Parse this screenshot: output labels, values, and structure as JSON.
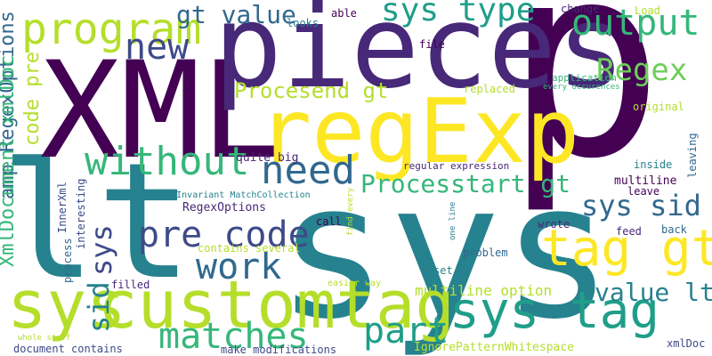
{
  "colors": {
    "dark_purple": "#440154",
    "purple": "#482878",
    "indigo": "#3e4a89",
    "blue": "#31688e",
    "teal": "#26828e",
    "teal_green": "#1f9e89",
    "green": "#35b779",
    "light_green": "#6ece58",
    "lime": "#b5de2b",
    "yellow": "#fde725"
  },
  "words": [
    {
      "text": "p",
      "color": "#440154"
    },
    {
      "text": "sys",
      "color": "#26828e"
    },
    {
      "text": "lt",
      "color": "#26828e"
    },
    {
      "text": "XML",
      "color": "#440154"
    },
    {
      "text": "pieces",
      "color": "#482878"
    },
    {
      "text": "regExp",
      "color": "#fde725"
    },
    {
      "text": "customtag",
      "color": "#b5de2b"
    },
    {
      "text": "sys",
      "color": "#b5de2b"
    },
    {
      "text": "sys tag",
      "color": "#1f9e89"
    },
    {
      "text": "tag gt",
      "color": "#fde725"
    },
    {
      "text": "program",
      "color": "#b5de2b"
    },
    {
      "text": "output",
      "color": "#35b779"
    },
    {
      "text": "Regex",
      "color": "#6ece58"
    },
    {
      "text": "new",
      "color": "#3e4a89"
    },
    {
      "text": "gt value",
      "color": "#31688e"
    },
    {
      "text": "sys type",
      "color": "#1f9e89"
    },
    {
      "text": "without",
      "color": "#35b779"
    },
    {
      "text": "need",
      "color": "#31688e"
    },
    {
      "text": "pre code",
      "color": "#3e4a89"
    },
    {
      "text": "work",
      "color": "#31688e"
    },
    {
      "text": "matches",
      "color": "#35b779"
    },
    {
      "text": "part",
      "color": "#1f9e89"
    },
    {
      "text": "sys sid",
      "color": "#31688e"
    },
    {
      "text": "value lt",
      "color": "#26828e"
    },
    {
      "text": "Processtart gt",
      "color": "#35b779"
    },
    {
      "text": "Procesend gt",
      "color": "#b5de2b"
    },
    {
      "text": "amp RegexOptions",
      "color": "#31688e"
    },
    {
      "text": "XmlDocument xmlDoc",
      "color": "#35b779"
    },
    {
      "text": "code pre",
      "color": "#b5de2b"
    },
    {
      "text": "sys",
      "color": "#3e4a89"
    },
    {
      "text": "sid",
      "color": "#26828e"
    },
    {
      "text": "multiline option",
      "color": "#b5de2b"
    },
    {
      "text": "IgnorePatternWhitespace",
      "color": "#b5de2b"
    },
    {
      "text": "quite big",
      "color": "#482878"
    },
    {
      "text": "RegexOptions",
      "color": "#482878"
    },
    {
      "text": "contains several",
      "color": "#b5de2b"
    },
    {
      "text": "CultureInvariant MatchCollection",
      "color": "#26828e"
    },
    {
      "text": "regular expression",
      "color": "#482878"
    },
    {
      "text": "multiline",
      "color": "#440154"
    },
    {
      "text": "leave",
      "color": "#440154"
    },
    {
      "text": "replaced",
      "color": "#b5de2b"
    },
    {
      "text": "application",
      "color": "#35b779"
    },
    {
      "text": "every occurences",
      "color": "#35b779"
    },
    {
      "text": "original",
      "color": "#b5de2b"
    },
    {
      "text": "inside",
      "color": "#26828e"
    },
    {
      "text": "leaving",
      "color": "#31688e"
    },
    {
      "text": "back",
      "color": "#31688e"
    },
    {
      "text": "feed",
      "color": "#482878"
    },
    {
      "text": "wrote",
      "color": "#482878"
    },
    {
      "text": "problem",
      "color": "#31688e"
    },
    {
      "text": "set",
      "color": "#26828e"
    },
    {
      "text": "call",
      "color": "#440154"
    },
    {
      "text": "easier way",
      "color": "#b5de2b"
    },
    {
      "text": "filled",
      "color": "#482878"
    },
    {
      "text": "make modifications",
      "color": "#3e4a89"
    },
    {
      "text": "document contains",
      "color": "#3e4a89"
    },
    {
      "text": "whole stuff",
      "color": "#b5de2b"
    },
    {
      "text": "xmlDoc",
      "color": "#3e4a89"
    },
    {
      "text": "looks",
      "color": "#26828e"
    },
    {
      "text": "able",
      "color": "#440154"
    },
    {
      "text": "change",
      "color": "#482878"
    },
    {
      "text": "Load",
      "color": "#b5de2b"
    },
    {
      "text": "file",
      "color": "#440154"
    },
    {
      "text": "InnerXml",
      "color": "#3e4a89"
    },
    {
      "text": "interesting",
      "color": "#3e4a89"
    },
    {
      "text": "process",
      "color": "#31688e"
    },
    {
      "text": "find every",
      "color": "#b5de2b"
    },
    {
      "text": "one line",
      "color": "#26828e"
    }
  ]
}
